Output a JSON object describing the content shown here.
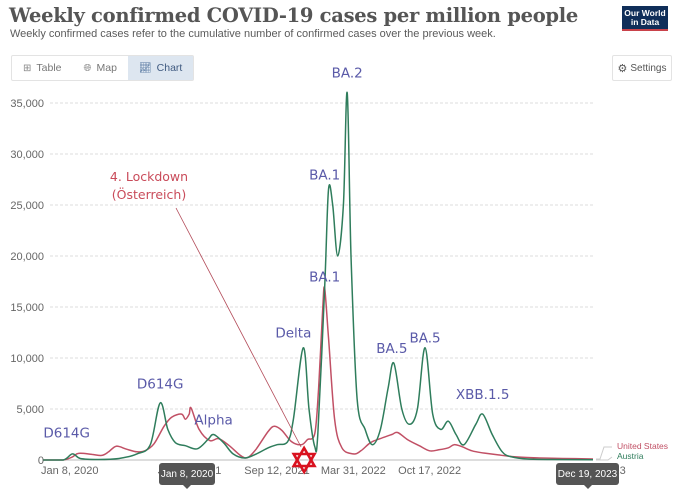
{
  "header": {
    "title": "Weekly confirmed COVID-19 cases per million people",
    "subtitle": "Weekly confirmed cases refer to the cumulative number of confirmed cases over the previous week.",
    "logo_line1": "Our World",
    "logo_line2": "in Data"
  },
  "tabs": [
    {
      "label": "Table",
      "icon": "table-icon",
      "active": false
    },
    {
      "label": "Map",
      "icon": "globe-icon",
      "active": false
    },
    {
      "label": "Chart",
      "icon": "line-chart-icon",
      "active": true
    }
  ],
  "settings": {
    "label": "Settings",
    "icon": "gear-icon"
  },
  "timeline": {
    "start_tooltip": "Jan 8, 2020",
    "end_tooltip": "Dec 19, 2023"
  },
  "colors": {
    "united_states": "#c15065",
    "austria": "#2f7d5c",
    "annotation": "#5a5aa8",
    "lockdown": "#c94b5a",
    "star": "#d9121f"
  },
  "chart_data": {
    "type": "line",
    "title": "Weekly confirmed COVID-19 cases per million people",
    "xlabel": "",
    "ylabel": "",
    "x_range": [
      "2020-01-08",
      "2023-12-19"
    ],
    "ylim": [
      0,
      35000
    ],
    "yticks": [
      0,
      5000,
      10000,
      15000,
      20000,
      25000,
      30000,
      35000
    ],
    "ytick_labels": [
      "0",
      "5,000",
      "10,000",
      "15,000",
      "20,000",
      "25,000",
      "30,000",
      "35,000"
    ],
    "xticks": [
      "2020-01-08",
      "2021-01-26",
      "2021-09-12",
      "2022-03-31",
      "2022-10-17",
      "2023-12-19"
    ],
    "xtick_labels": [
      "Jan 8, 2020",
      "Jan 26, 2021",
      "Sep 12, 2021",
      "Mar 31, 2022",
      "Oct 17, 2022",
      "Dec 19, 2023"
    ],
    "grid": true,
    "legend_position": "right-end",
    "series": [
      {
        "name": "United States",
        "points": [
          [
            "2020-01-08",
            0
          ],
          [
            "2020-03-01",
            0
          ],
          [
            "2020-03-25",
            300
          ],
          [
            "2020-04-10",
            650
          ],
          [
            "2020-05-15",
            550
          ],
          [
            "2020-06-10",
            450
          ],
          [
            "2020-06-28",
            800
          ],
          [
            "2020-07-18",
            1350
          ],
          [
            "2020-08-15",
            1050
          ],
          [
            "2020-09-10",
            800
          ],
          [
            "2020-10-01",
            900
          ],
          [
            "2020-10-25",
            1600
          ],
          [
            "2020-11-20",
            3300
          ],
          [
            "2020-12-10",
            4200
          ],
          [
            "2021-01-05",
            4500
          ],
          [
            "2021-01-15",
            4000
          ],
          [
            "2021-01-25",
            4500
          ],
          [
            "2021-01-30",
            5100
          ],
          [
            "2021-02-20",
            3000
          ],
          [
            "2021-03-20",
            1900
          ],
          [
            "2021-04-12",
            2100
          ],
          [
            "2021-05-10",
            1400
          ],
          [
            "2021-06-10",
            400
          ],
          [
            "2021-06-28",
            250
          ],
          [
            "2021-07-20",
            1100
          ],
          [
            "2021-08-20",
            2800
          ],
          [
            "2021-09-05",
            3300
          ],
          [
            "2021-09-25",
            2900
          ],
          [
            "2021-10-20",
            1800
          ],
          [
            "2021-11-15",
            1500
          ],
          [
            "2021-12-01",
            2000
          ],
          [
            "2021-12-20",
            2600
          ],
          [
            "2021-12-30",
            7000
          ],
          [
            "2022-01-10",
            15000
          ],
          [
            "2022-01-15",
            16800
          ],
          [
            "2022-01-25",
            12000
          ],
          [
            "2022-02-10",
            4000
          ],
          [
            "2022-03-01",
            1200
          ],
          [
            "2022-03-31",
            600
          ],
          [
            "2022-04-20",
            900
          ],
          [
            "2022-05-15",
            1700
          ],
          [
            "2022-06-10",
            2100
          ],
          [
            "2022-07-10",
            2500
          ],
          [
            "2022-07-25",
            2700
          ],
          [
            "2022-08-20",
            2000
          ],
          [
            "2022-09-20",
            1400
          ],
          [
            "2022-10-17",
            900
          ],
          [
            "2022-11-10",
            1000
          ],
          [
            "2022-12-05",
            1200
          ],
          [
            "2022-12-20",
            1500
          ],
          [
            "2023-01-10",
            1300
          ],
          [
            "2023-02-05",
            900
          ],
          [
            "2023-03-05",
            700
          ],
          [
            "2023-04-15",
            500
          ],
          [
            "2023-06-01",
            300
          ],
          [
            "2023-08-01",
            200
          ],
          [
            "2023-10-01",
            150
          ],
          [
            "2023-12-19",
            100
          ]
        ]
      },
      {
        "name": "Austria",
        "points": [
          [
            "2020-01-08",
            0
          ],
          [
            "2020-03-01",
            0
          ],
          [
            "2020-03-25",
            600
          ],
          [
            "2020-04-15",
            150
          ],
          [
            "2020-06-01",
            50
          ],
          [
            "2020-07-25",
            150
          ],
          [
            "2020-09-10",
            600
          ],
          [
            "2020-10-15",
            1500
          ],
          [
            "2020-11-10",
            5600
          ],
          [
            "2020-11-30",
            3000
          ],
          [
            "2020-12-20",
            1700
          ],
          [
            "2021-01-15",
            1400
          ],
          [
            "2021-02-15",
            1100
          ],
          [
            "2021-03-15",
            2000
          ],
          [
            "2021-03-30",
            2500
          ],
          [
            "2021-04-25",
            1700
          ],
          [
            "2021-05-20",
            600
          ],
          [
            "2021-06-20",
            200
          ],
          [
            "2021-07-20",
            600
          ],
          [
            "2021-08-20",
            1200
          ],
          [
            "2021-09-12",
            1500
          ],
          [
            "2021-10-10",
            1800
          ],
          [
            "2021-10-25",
            4000
          ],
          [
            "2021-11-20",
            11000
          ],
          [
            "2021-12-05",
            5000
          ],
          [
            "2021-12-20",
            1300
          ],
          [
            "2021-12-28",
            2500
          ],
          [
            "2022-01-15",
            17000
          ],
          [
            "2022-01-25",
            26500
          ],
          [
            "2022-02-05",
            25000
          ],
          [
            "2022-02-18",
            20000
          ],
          [
            "2022-03-05",
            25000
          ],
          [
            "2022-03-15",
            36000
          ],
          [
            "2022-03-25",
            20000
          ],
          [
            "2022-04-10",
            6000
          ],
          [
            "2022-05-01",
            3000
          ],
          [
            "2022-05-20",
            1500
          ],
          [
            "2022-06-10",
            3000
          ],
          [
            "2022-06-30",
            7000
          ],
          [
            "2022-07-15",
            9500
          ],
          [
            "2022-08-05",
            5000
          ],
          [
            "2022-08-25",
            3500
          ],
          [
            "2022-09-15",
            5000
          ],
          [
            "2022-10-05",
            11000
          ],
          [
            "2022-10-25",
            4500
          ],
          [
            "2022-11-15",
            3000
          ],
          [
            "2022-12-05",
            3800
          ],
          [
            "2022-12-25",
            2500
          ],
          [
            "2023-01-15",
            1500
          ],
          [
            "2023-02-15",
            3500
          ],
          [
            "2023-03-05",
            4500
          ],
          [
            "2023-03-30",
            2500
          ],
          [
            "2023-04-25",
            800
          ],
          [
            "2023-05-20",
            300
          ],
          [
            "2023-07-01",
            100
          ],
          [
            "2023-09-01",
            50
          ],
          [
            "2023-12-19",
            30
          ]
        ]
      }
    ],
    "annotations": [
      {
        "text": "D614G",
        "date": "2020-03-10",
        "value": 2200
      },
      {
        "text": "D614G",
        "date": "2020-11-10",
        "value": 7000
      },
      {
        "text": "Alpha",
        "date": "2021-03-30",
        "value": 3500
      },
      {
        "text": "Delta",
        "date": "2021-10-25",
        "value": 12000
      },
      {
        "text": "BA.1",
        "date": "2022-01-15",
        "value": 17500
      },
      {
        "text": "BA.1",
        "date": "2022-01-15",
        "value": 27500
      },
      {
        "text": "BA.2",
        "date": "2022-03-15",
        "value": 37500
      },
      {
        "text": "BA.5",
        "date": "2022-07-10",
        "value": 10500
      },
      {
        "text": "BA.5",
        "date": "2022-10-05",
        "value": 11500
      },
      {
        "text": "XBB.1.5",
        "date": "2023-03-05",
        "value": 6000
      }
    ],
    "lockdown_annotation": {
      "line1": "4. Lockdown",
      "line2": "(Österreich)",
      "date": "2021-11-22"
    }
  }
}
